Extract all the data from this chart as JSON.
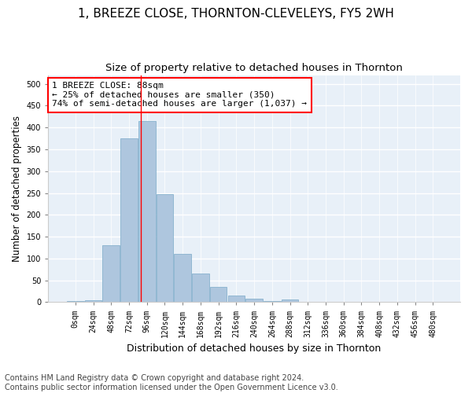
{
  "title": "1, BREEZE CLOSE, THORNTON-CLEVELEYS, FY5 2WH",
  "subtitle": "Size of property relative to detached houses in Thornton",
  "xlabel": "Distribution of detached houses by size in Thornton",
  "ylabel": "Number of detached properties",
  "bar_color": "#aec6de",
  "bar_edge_color": "#7aaac8",
  "background_color": "#e8f0f8",
  "grid_color": "#ffffff",
  "categories": [
    "0sqm",
    "24sqm",
    "48sqm",
    "72sqm",
    "96sqm",
    "120sqm",
    "144sqm",
    "168sqm",
    "192sqm",
    "216sqm",
    "240sqm",
    "264sqm",
    "288sqm",
    "312sqm",
    "336sqm",
    "360sqm",
    "384sqm",
    "408sqm",
    "432sqm",
    "456sqm",
    "480sqm"
  ],
  "values": [
    3,
    5,
    130,
    375,
    415,
    247,
    110,
    65,
    35,
    15,
    8,
    3,
    6,
    1,
    0,
    0,
    0,
    0,
    0,
    0,
    0
  ],
  "annotation_text": "1 BREEZE CLOSE: 88sqm\n← 25% of detached houses are smaller (350)\n74% of semi-detached houses are larger (1,037) →",
  "ylim": [
    0,
    520
  ],
  "yticks": [
    0,
    50,
    100,
    150,
    200,
    250,
    300,
    350,
    400,
    450,
    500
  ],
  "red_line_index": 3.667,
  "footnote_line1": "Contains HM Land Registry data © Crown copyright and database right 2024.",
  "footnote_line2": "Contains public sector information licensed under the Open Government Licence v3.0.",
  "title_fontsize": 11,
  "subtitle_fontsize": 9.5,
  "xlabel_fontsize": 9,
  "ylabel_fontsize": 8.5,
  "tick_fontsize": 7,
  "annotation_fontsize": 8,
  "footnote_fontsize": 7
}
